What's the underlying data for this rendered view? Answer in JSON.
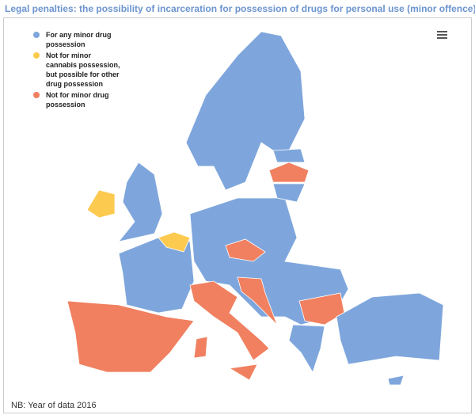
{
  "title": "Legal penalties: the possibility of incarceration for possession of drugs for personal use (minor offence)",
  "legend": [
    {
      "label": "For any minor drug possession",
      "color": "#7ea6dc"
    },
    {
      "label": "Not for minor cannabis possession, but possible for other drug possession",
      "color": "#fdca50"
    },
    {
      "label": "Not for minor drug possession",
      "color": "#f08060"
    }
  ],
  "note": "NB: Year of data 2016"
}
